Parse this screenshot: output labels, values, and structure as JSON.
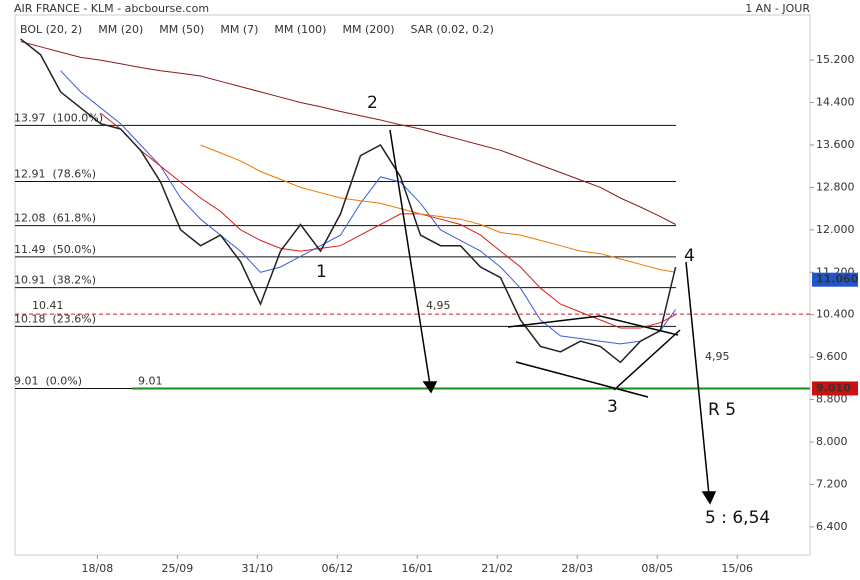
{
  "header": {
    "title": "AIR FRANCE - KLM - abcbourse.com",
    "period": "1 AN - JOUR"
  },
  "chart_data": {
    "type": "line",
    "xlim": [
      -1.03,
      8.91
    ],
    "xticks": [
      {
        "value": 0,
        "label": "18/08"
      },
      {
        "value": 1,
        "label": "25/09"
      },
      {
        "value": 2,
        "label": "31/10"
      },
      {
        "value": 3,
        "label": "06/12"
      },
      {
        "value": 4,
        "label": "16/01"
      },
      {
        "value": 5,
        "label": "21/02"
      },
      {
        "value": 6,
        "label": "28/03"
      },
      {
        "value": 7,
        "label": "08/05"
      },
      {
        "value": 8,
        "label": "15/06"
      }
    ],
    "ylim": [
      5.87,
      16.05
    ],
    "yticks": [
      {
        "value": 15.2,
        "label": "15.200"
      },
      {
        "value": 14.4,
        "label": "14.400"
      },
      {
        "value": 13.6,
        "label": "13.600"
      },
      {
        "value": 12.8,
        "label": "12.800"
      },
      {
        "value": 12,
        "label": "12.000"
      },
      {
        "value": 11.2,
        "label": "11.200"
      },
      {
        "value": 10.4,
        "label": "10.400"
      },
      {
        "value": 9.6,
        "label": "9.600"
      },
      {
        "value": 8.8,
        "label": "8.800"
      },
      {
        "value": 8,
        "label": "8.000"
      },
      {
        "value": 7.2,
        "label": "7.200"
      },
      {
        "value": 6.4,
        "label": "6.400"
      }
    ],
    "x": [
      -0.96,
      -0.71,
      -0.46,
      -0.21,
      0.04,
      0.29,
      0.54,
      0.79,
      1.04,
      1.29,
      1.54,
      1.79,
      2.04,
      2.29,
      2.54,
      2.79,
      3.04,
      3.29,
      3.54,
      3.79,
      4.04,
      4.29,
      4.54,
      4.79,
      5.04,
      5.29,
      5.54,
      5.79,
      6.04,
      6.29,
      6.54,
      6.79,
      7.04,
      7.23
    ],
    "close": {
      "color": "#222222",
      "values": [
        15.6,
        15.3,
        14.6,
        14.3,
        14.0,
        13.9,
        13.5,
        12.9,
        12.0,
        11.7,
        11.9,
        11.4,
        10.6,
        11.6,
        12.1,
        11.6,
        12.3,
        13.4,
        13.6,
        13.0,
        11.9,
        11.7,
        11.7,
        11.3,
        11.1,
        10.3,
        9.8,
        9.7,
        9.9,
        9.8,
        9.5,
        9.9,
        10.1,
        11.3
      ]
    },
    "indicators": [
      {
        "name": "BOL (20, 2)",
        "color": "#333333"
      },
      {
        "name": "MM (7)",
        "color": "#1a8a1a"
      },
      {
        "name": "SAR (0.02, 0.2)",
        "color": "#b01818"
      }
    ],
    "series": [
      {
        "name": "MM (20)",
        "color": "#3a5fd8",
        "values": [
          null,
          null,
          15.0,
          14.6,
          14.3,
          14.0,
          13.6,
          13.2,
          12.6,
          12.2,
          11.9,
          11.6,
          11.2,
          11.3,
          11.5,
          11.7,
          11.9,
          12.5,
          13.0,
          12.9,
          12.5,
          12.0,
          11.8,
          11.6,
          11.3,
          10.9,
          10.3,
          10.0,
          9.95,
          9.9,
          9.85,
          9.9,
          10.1,
          10.5
        ]
      },
      {
        "name": "MM (50)",
        "color": "#d81e1e",
        "values": [
          null,
          null,
          null,
          null,
          14.2,
          13.9,
          13.5,
          13.2,
          12.9,
          12.6,
          12.35,
          12.0,
          11.8,
          11.65,
          11.6,
          11.65,
          11.7,
          11.9,
          12.1,
          12.3,
          12.3,
          12.2,
          12.1,
          11.9,
          11.6,
          11.3,
          10.9,
          10.6,
          10.45,
          10.3,
          10.15,
          10.15,
          10.25,
          10.4
        ]
      },
      {
        "name": "MM (100)",
        "color": "#f07800",
        "values": [
          null,
          null,
          null,
          null,
          null,
          null,
          null,
          null,
          null,
          13.6,
          13.45,
          13.3,
          13.1,
          12.95,
          12.8,
          12.7,
          12.6,
          12.55,
          12.5,
          12.4,
          12.3,
          12.25,
          12.2,
          12.1,
          11.95,
          11.9,
          11.8,
          11.7,
          11.6,
          11.55,
          11.45,
          11.35,
          11.25,
          11.2
        ]
      },
      {
        "name": "MM (200)",
        "color": "#8b1a1a",
        "values": [
          15.55,
          15.45,
          15.35,
          15.25,
          15.2,
          15.13,
          15.06,
          15.0,
          14.95,
          14.9,
          14.8,
          14.7,
          14.6,
          14.5,
          14.4,
          14.32,
          14.23,
          14.15,
          14.07,
          13.98,
          13.9,
          13.8,
          13.7,
          13.6,
          13.5,
          13.36,
          13.22,
          13.08,
          12.94,
          12.8,
          12.6,
          12.43,
          12.25,
          12.1
        ]
      }
    ],
    "fib_levels": [
      {
        "value": 13.97,
        "label": "13.97  (100.0%)"
      },
      {
        "value": 12.91,
        "label": "12.91  (78.6%)"
      },
      {
        "value": 12.08,
        "label": "12.08  (61.8%)"
      },
      {
        "value": 11.49,
        "label": "11.49  (50.0%)"
      },
      {
        "value": 10.91,
        "label": "10.91  (38.2%)"
      },
      {
        "value": 10.18,
        "label": "10.18  (23.6%)"
      },
      {
        "value": 9.01,
        "label": "9.01  (0.0%)"
      }
    ],
    "support": {
      "value": 9.01,
      "label": "9.01",
      "color": "#1a8a1a"
    },
    "dashed_level": {
      "value": 10.41,
      "label": "10.41",
      "color": "#c02020"
    },
    "price_markers": [
      {
        "value": 11.06,
        "label": "11.060",
        "color": "#2255cc"
      },
      {
        "value": 9.01,
        "label": "9.010",
        "color": "#cc1111"
      }
    ],
    "annotations": [
      "1",
      "2",
      "3",
      "4",
      "4,95",
      "4,95",
      "R 5",
      "5 : 6,54"
    ]
  }
}
